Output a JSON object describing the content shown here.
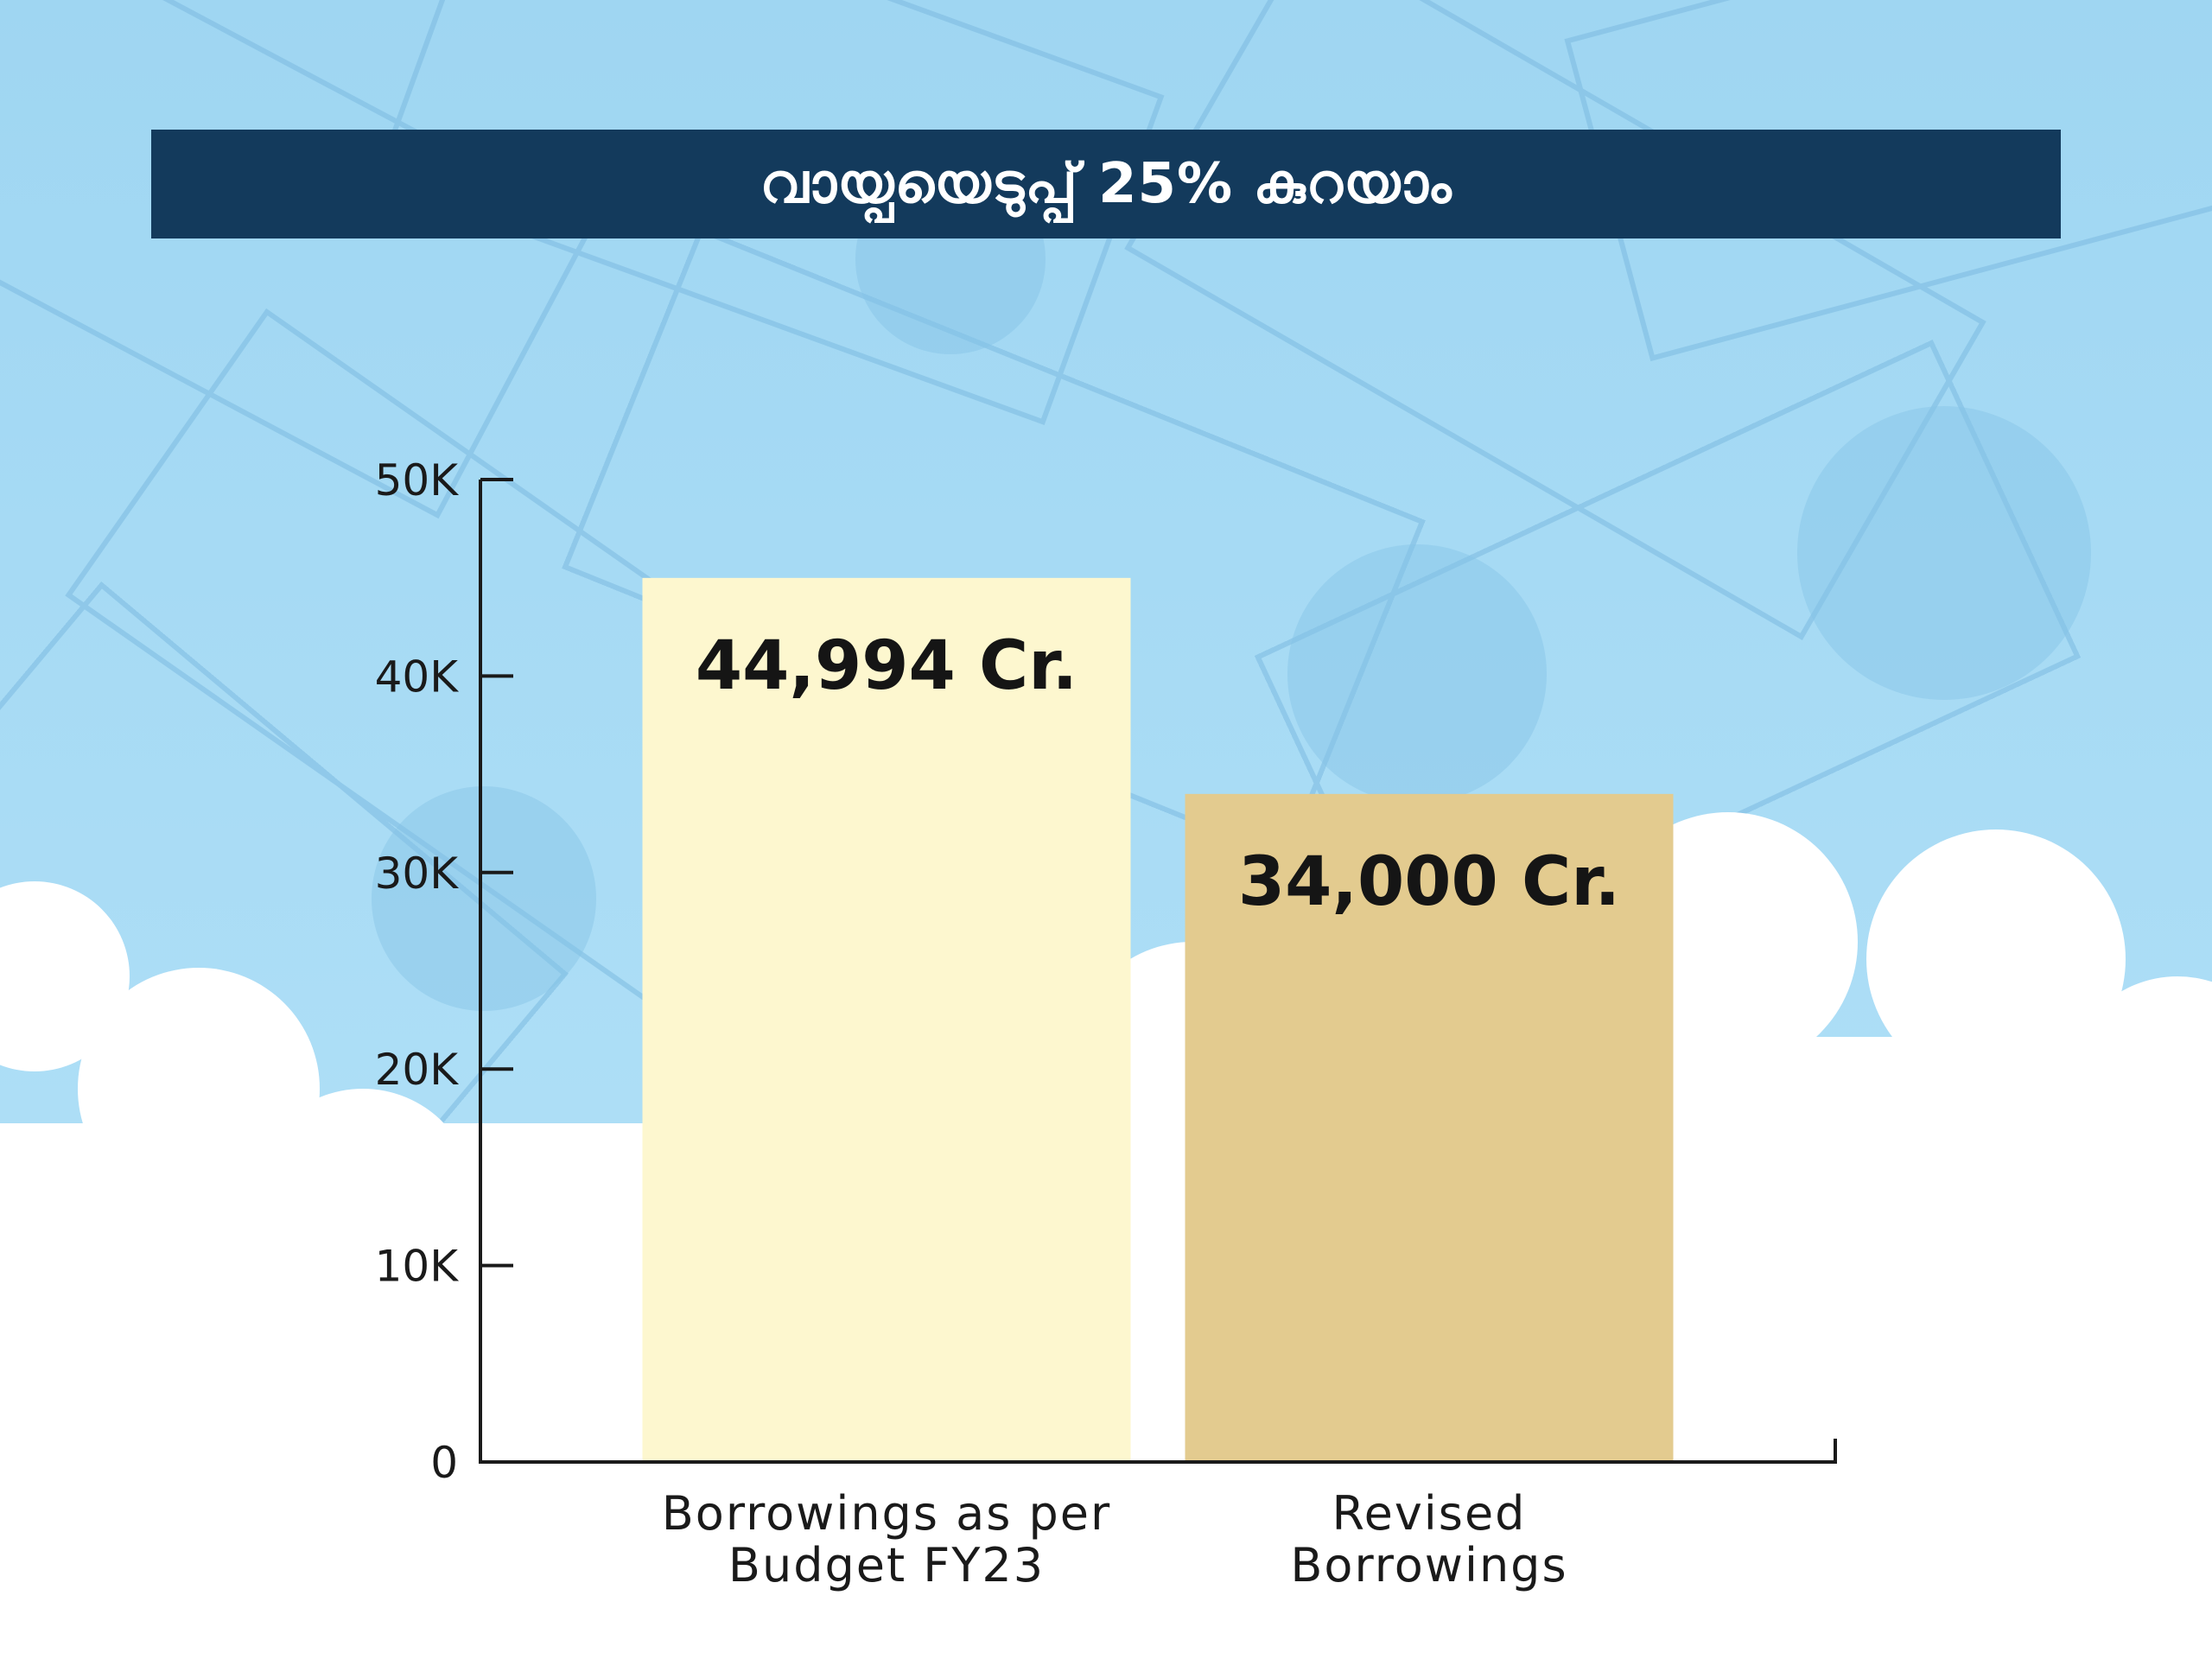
{
  "title": "വായ്പയെടുപ്പ് 25% കുറയാം",
  "colors": {
    "sky": "#a9ddf6",
    "banner": "#133a5c",
    "bar_1": "#fdf7cf",
    "bar_2": "#e3cb8f",
    "axis": "#1a1a1a"
  },
  "chart_data": {
    "type": "bar",
    "title": "വായ്പയെടുപ്പ് 25% കുറയാം",
    "categories": [
      [
        "Borrowings as per",
        "Budget FY23"
      ],
      [
        "Revised",
        "Borrowings"
      ]
    ],
    "values": [
      44994,
      34000
    ],
    "data_labels": [
      "44,994 Cr.",
      "34,000 Cr."
    ],
    "y_ticks": [
      0,
      10000,
      20000,
      30000,
      40000,
      50000
    ],
    "y_tick_labels": [
      "0",
      "10K",
      "20K",
      "30K",
      "40K",
      "50K"
    ],
    "ylim": [
      0,
      50000
    ],
    "xlabel": "",
    "ylabel": "",
    "grid": false,
    "legend": "none"
  }
}
